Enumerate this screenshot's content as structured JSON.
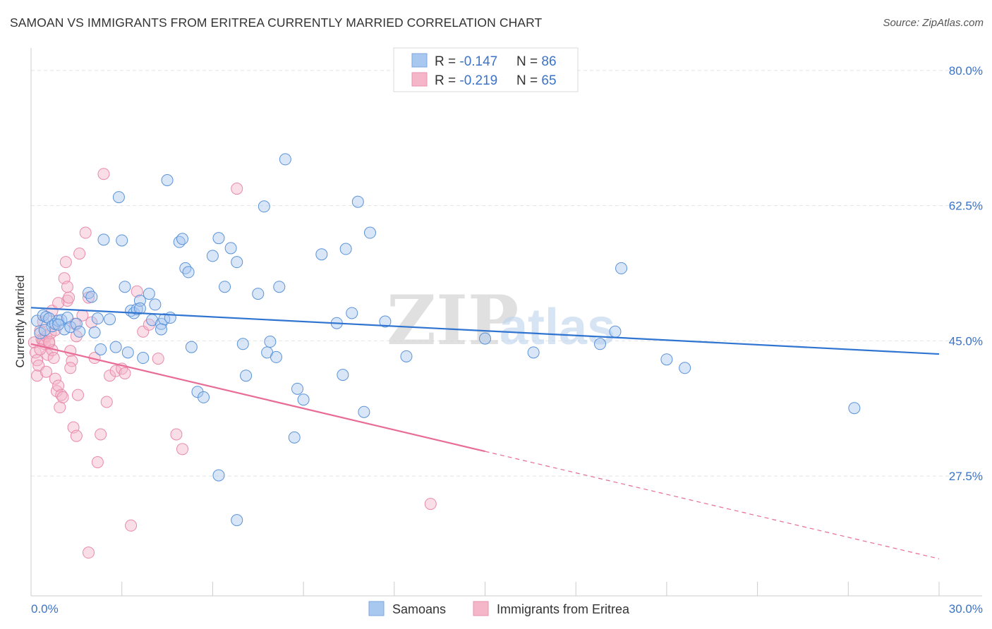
{
  "title": "SAMOAN VS IMMIGRANTS FROM ERITREA CURRENTLY MARRIED CORRELATION CHART",
  "source": "Source: ZipAtlas.com",
  "watermark": {
    "part1": "ZIP",
    "part2": "atlas"
  },
  "legend": {
    "rows": [
      {
        "r_label": "R = ",
        "r_value": "-0.147",
        "n_label": "N = ",
        "n_value": "86",
        "color": "#a9c8f0"
      },
      {
        "r_label": "R = ",
        "r_value": "-0.219",
        "n_label": "N = ",
        "n_value": "65",
        "color": "#f5b6ca"
      }
    ]
  },
  "bottom_legend": [
    "Samoans",
    "Immigrants from Eritrea"
  ],
  "colors": {
    "blue": "#2f74d0",
    "pink": "#e86c96",
    "blue_fill": "#a9c8f0",
    "pink_fill": "#f5b6ca",
    "tick_text": "#3b73c8"
  },
  "chart_data": {
    "type": "scatter",
    "ylabel": "Currently Married",
    "xlim": [
      0,
      30
    ],
    "ylim": [
      12,
      82
    ],
    "x_tick_labels": [
      "0.0%",
      "30.0%"
    ],
    "y_ticks": [
      80,
      62.5,
      45,
      27.5
    ],
    "y_tick_labels": [
      "80.0%",
      "62.5%",
      "45.0%",
      "27.5%"
    ],
    "grid": true,
    "series": [
      {
        "name": "Samoans",
        "color": "#2f74d0",
        "trend": {
          "x": [
            0,
            30
          ],
          "y": [
            49.3,
            43.3
          ],
          "dashed_from": null
        },
        "points": [
          [
            0.2,
            47.6
          ],
          [
            0.3,
            46.0
          ],
          [
            0.4,
            48.3
          ],
          [
            0.5,
            48.1
          ],
          [
            0.6,
            47.9
          ],
          [
            0.7,
            46.9
          ],
          [
            0.8,
            47.2
          ],
          [
            0.9,
            47.6
          ],
          [
            1.0,
            47.7
          ],
          [
            1.1,
            46.5
          ],
          [
            1.2,
            48.0
          ],
          [
            1.3,
            46.8
          ],
          [
            1.5,
            47.2
          ],
          [
            1.9,
            51.2
          ],
          [
            2.0,
            50.7
          ],
          [
            2.1,
            46.1
          ],
          [
            2.3,
            43.9
          ],
          [
            2.4,
            58.1
          ],
          [
            2.6,
            47.8
          ],
          [
            2.8,
            44.2
          ],
          [
            2.9,
            63.6
          ],
          [
            3.0,
            58.0
          ],
          [
            3.1,
            52.0
          ],
          [
            3.2,
            43.5
          ],
          [
            3.3,
            48.9
          ],
          [
            3.4,
            48.6
          ],
          [
            3.5,
            49.1
          ],
          [
            3.6,
            50.2
          ],
          [
            3.7,
            42.8
          ],
          [
            3.9,
            51.1
          ],
          [
            4.0,
            47.7
          ],
          [
            4.1,
            49.7
          ],
          [
            4.3,
            47.2
          ],
          [
            4.4,
            47.8
          ],
          [
            4.5,
            65.8
          ],
          [
            4.6,
            48.0
          ],
          [
            4.9,
            57.8
          ],
          [
            5.0,
            58.2
          ],
          [
            5.1,
            54.4
          ],
          [
            5.2,
            53.9
          ],
          [
            5.3,
            44.2
          ],
          [
            5.5,
            38.4
          ],
          [
            5.7,
            37.7
          ],
          [
            6.0,
            56.0
          ],
          [
            6.2,
            58.3
          ],
          [
            6.4,
            52.0
          ],
          [
            6.6,
            57.0
          ],
          [
            6.8,
            55.2
          ],
          [
            7.0,
            44.6
          ],
          [
            7.1,
            40.5
          ],
          [
            7.5,
            51.1
          ],
          [
            7.7,
            62.4
          ],
          [
            7.8,
            43.5
          ],
          [
            7.9,
            44.9
          ],
          [
            8.1,
            42.9
          ],
          [
            8.2,
            52.0
          ],
          [
            8.4,
            68.5
          ],
          [
            8.7,
            32.5
          ],
          [
            8.8,
            38.8
          ],
          [
            9.0,
            37.4
          ],
          [
            9.6,
            56.2
          ],
          [
            10.1,
            47.3
          ],
          [
            10.3,
            40.6
          ],
          [
            10.4,
            56.9
          ],
          [
            10.6,
            48.6
          ],
          [
            10.8,
            63.0
          ],
          [
            11.0,
            35.8
          ],
          [
            11.2,
            59.0
          ],
          [
            11.7,
            47.5
          ],
          [
            12.4,
            43.0
          ],
          [
            15.0,
            45.3
          ],
          [
            16.6,
            43.5
          ],
          [
            18.8,
            44.6
          ],
          [
            19.3,
            46.2
          ],
          [
            19.5,
            54.4
          ],
          [
            21.0,
            42.6
          ],
          [
            21.6,
            41.5
          ],
          [
            27.2,
            36.3
          ],
          [
            6.2,
            27.6
          ],
          [
            6.8,
            21.8
          ],
          [
            4.3,
            46.5
          ],
          [
            3.6,
            49.2
          ],
          [
            2.2,
            47.9
          ],
          [
            1.6,
            46.2
          ],
          [
            0.9,
            47.1
          ],
          [
            0.45,
            46.4
          ]
        ]
      },
      {
        "name": "Immigrants from Eritrea",
        "color": "#e86c96",
        "trend": {
          "x": [
            0,
            15
          ],
          "y": [
            44.6,
            30.7
          ],
          "dashed_from": 15,
          "dashed_x": [
            15,
            30
          ],
          "dashed_y": [
            30.7,
            16.8
          ]
        },
        "points": [
          [
            0.1,
            44.8
          ],
          [
            0.15,
            43.5
          ],
          [
            0.2,
            42.5
          ],
          [
            0.25,
            41.8
          ],
          [
            0.3,
            46.3
          ],
          [
            0.35,
            45.2
          ],
          [
            0.4,
            45.1
          ],
          [
            0.45,
            44.6
          ],
          [
            0.5,
            45.6
          ],
          [
            0.55,
            43.2
          ],
          [
            0.6,
            44.7
          ],
          [
            0.65,
            46.0
          ],
          [
            0.7,
            43.8
          ],
          [
            0.75,
            42.8
          ],
          [
            0.8,
            40.1
          ],
          [
            0.85,
            38.5
          ],
          [
            0.9,
            39.2
          ],
          [
            0.95,
            36.4
          ],
          [
            1.0,
            38.0
          ],
          [
            1.05,
            37.7
          ],
          [
            1.1,
            53.1
          ],
          [
            1.15,
            55.2
          ],
          [
            1.2,
            50.2
          ],
          [
            1.25,
            50.6
          ],
          [
            1.3,
            43.7
          ],
          [
            1.35,
            42.4
          ],
          [
            1.4,
            33.8
          ],
          [
            1.45,
            47.2
          ],
          [
            1.5,
            45.6
          ],
          [
            1.55,
            38.0
          ],
          [
            1.6,
            56.3
          ],
          [
            1.7,
            48.3
          ],
          [
            1.8,
            59.0
          ],
          [
            1.9,
            50.6
          ],
          [
            2.0,
            47.4
          ],
          [
            2.1,
            42.8
          ],
          [
            2.2,
            29.3
          ],
          [
            2.3,
            32.9
          ],
          [
            2.4,
            66.6
          ],
          [
            2.5,
            37.1
          ],
          [
            2.6,
            40.5
          ],
          [
            2.8,
            41.1
          ],
          [
            3.0,
            41.4
          ],
          [
            3.1,
            40.8
          ],
          [
            3.3,
            21.1
          ],
          [
            3.5,
            51.4
          ],
          [
            3.7,
            46.2
          ],
          [
            3.9,
            47.1
          ],
          [
            4.2,
            42.7
          ],
          [
            4.8,
            32.9
          ],
          [
            5.0,
            31.0
          ],
          [
            6.8,
            64.7
          ],
          [
            13.2,
            23.9
          ],
          [
            1.9,
            17.6
          ],
          [
            0.2,
            40.5
          ],
          [
            0.5,
            41.0
          ],
          [
            0.6,
            44.9
          ],
          [
            0.7,
            48.9
          ],
          [
            0.9,
            49.9
          ],
          [
            1.2,
            52.0
          ],
          [
            0.3,
            43.9
          ],
          [
            0.4,
            47.5
          ],
          [
            0.8,
            46.4
          ],
          [
            1.3,
            41.5
          ],
          [
            1.5,
            32.7
          ]
        ]
      }
    ]
  }
}
